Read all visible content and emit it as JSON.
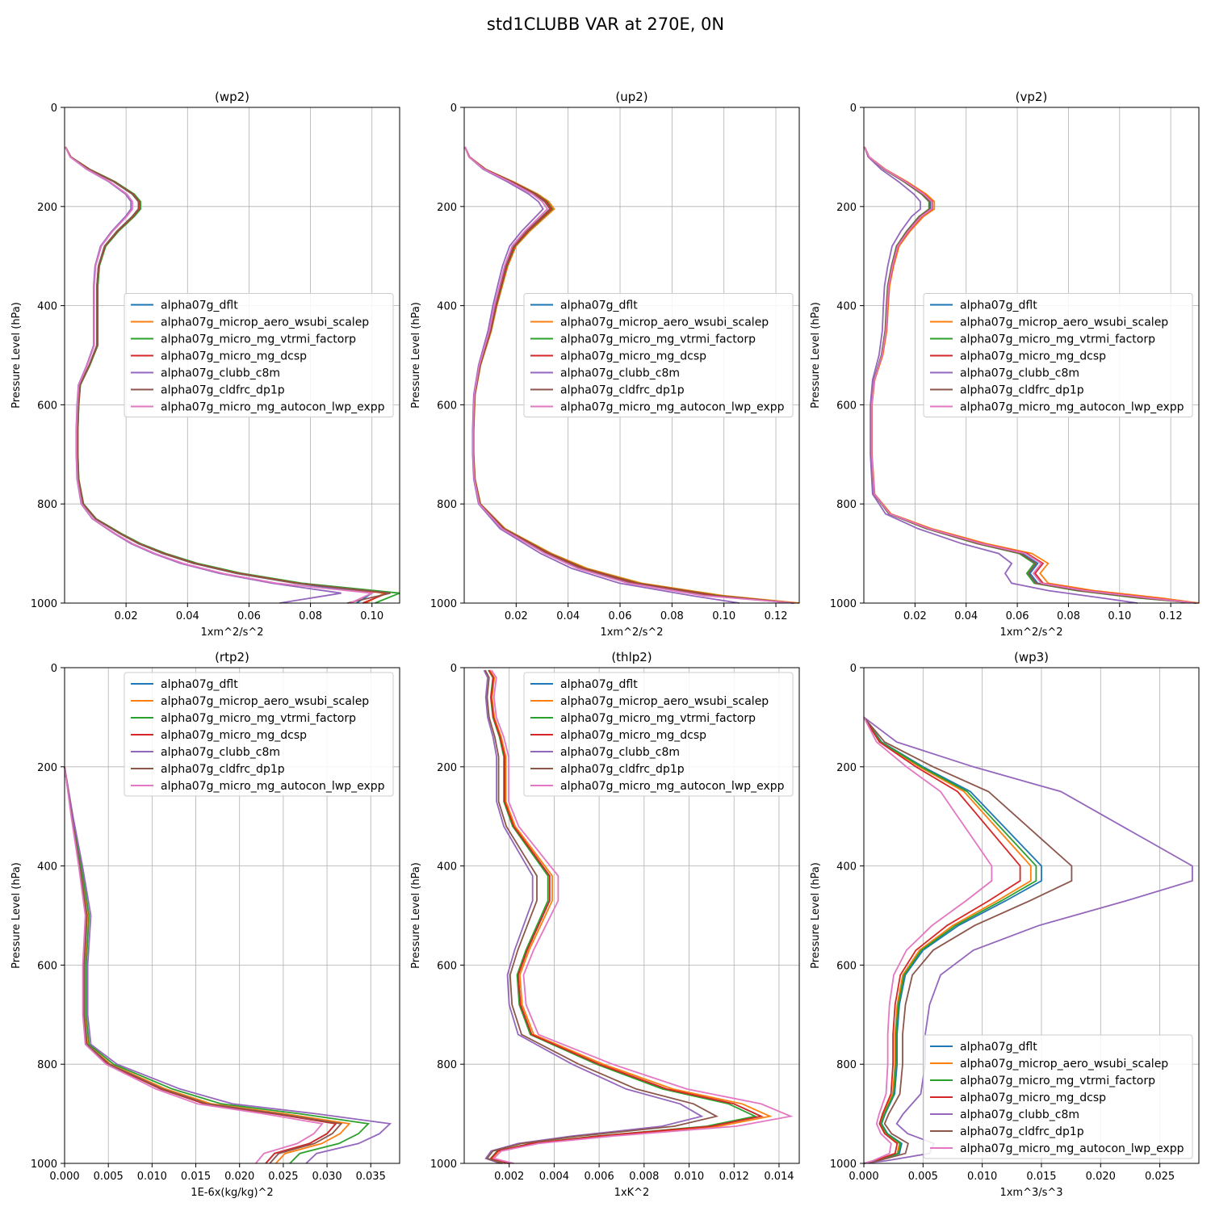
{
  "figure": {
    "title": "std1CLUBB VAR at 270E, 0N"
  },
  "legend_entries": [
    "alpha07g_dflt",
    "alpha07g_microp_aero_wsubi_scalep",
    "alpha07g_micro_mg_vtrmi_factorp",
    "alpha07g_micro_mg_dcsp",
    "alpha07g_clubb_c8m",
    "alpha07g_cldfrc_dp1p",
    "alpha07g_micro_mg_autocon_lwp_expp"
  ],
  "colors": [
    "#1f77b4",
    "#ff7f0e",
    "#2ca02c",
    "#d62728",
    "#9467bd",
    "#8c564b",
    "#e377c2"
  ],
  "chart_data": [
    {
      "type": "line",
      "title": "(wp2)",
      "xlabel": "1xm^2/s^2",
      "ylabel": "Pressure Level (hPa)",
      "xlim": [
        0.0,
        0.109
      ],
      "ylim": [
        1000,
        0
      ],
      "grid": true,
      "legend_loc": "center right",
      "xticks": [
        0.02,
        0.04,
        0.06,
        0.08,
        0.1
      ],
      "xticklabels": [
        "0.02",
        "0.04",
        "0.06",
        "0.08",
        "0.10"
      ],
      "yticks": [
        0,
        200,
        400,
        600,
        800,
        1000
      ],
      "yticklabels": [
        "0",
        "200",
        "400",
        "600",
        "800",
        "1000"
      ],
      "base": {
        "p": [
          80,
          100,
          125,
          150,
          175,
          190,
          205,
          220,
          250,
          280,
          320,
          360,
          400,
          450,
          480,
          520,
          560,
          600,
          650,
          700,
          750,
          800,
          830,
          860,
          880,
          900,
          920,
          940,
          960,
          980,
          1000
        ],
        "x": [
          0.0003,
          0.002,
          0.008,
          0.016,
          0.022,
          0.024,
          0.024,
          0.022,
          0.017,
          0.013,
          0.011,
          0.0105,
          0.0105,
          0.0105,
          0.0105,
          0.008,
          0.005,
          0.0045,
          0.0042,
          0.0042,
          0.0045,
          0.006,
          0.01,
          0.018,
          0.024,
          0.032,
          0.042,
          0.056,
          0.075,
          0.1,
          0.102
        ]
      },
      "series": [
        {
          "name": "alpha07g_dflt",
          "scale": 1.0,
          "tail": [
            0.1,
            0.095
          ]
        },
        {
          "name": "alpha07g_microp_aero_wsubi_scalep",
          "scale": 1.02,
          "tail": [
            0.104,
            0.098
          ]
        },
        {
          "name": "alpha07g_micro_mg_vtrmi_factorp",
          "scale": 1.03,
          "tail": [
            0.109,
            0.101
          ]
        },
        {
          "name": "alpha07g_micro_mg_dcsp",
          "scale": 1.01,
          "tail": [
            0.105,
            0.097
          ]
        },
        {
          "name": "alpha07g_clubb_c8m",
          "scale": 0.9,
          "tail": [
            0.09,
            0.07
          ]
        },
        {
          "name": "alpha07g_cldfrc_dp1p",
          "scale": 1.0,
          "tail": [
            0.106,
            0.092
          ]
        },
        {
          "name": "alpha07g_micro_mg_autocon_lwp_expp",
          "scale": 0.92,
          "tail": [
            0.1,
            0.093
          ]
        }
      ]
    },
    {
      "type": "line",
      "title": "(up2)",
      "xlabel": "1xm^2/s^2",
      "ylabel": "Pressure Level (hPa)",
      "xlim": [
        0.0,
        0.129
      ],
      "ylim": [
        1000,
        0
      ],
      "grid": true,
      "legend_loc": "center right",
      "xticks": [
        0.02,
        0.04,
        0.06,
        0.08,
        0.1,
        0.12
      ],
      "xticklabels": [
        "0.02",
        "0.04",
        "0.06",
        "0.08",
        "0.10",
        "0.12"
      ],
      "yticks": [
        0,
        200,
        400,
        600,
        800,
        1000
      ],
      "yticklabels": [
        "0",
        "200",
        "400",
        "600",
        "800",
        "1000"
      ],
      "base": {
        "p": [
          80,
          100,
          125,
          150,
          175,
          190,
          205,
          220,
          250,
          280,
          320,
          360,
          400,
          450,
          520,
          580,
          650,
          700,
          750,
          800,
          850,
          900,
          930,
          960,
          985,
          1000
        ],
        "x": [
          0.0003,
          0.002,
          0.008,
          0.018,
          0.027,
          0.031,
          0.033,
          0.03,
          0.024,
          0.019,
          0.016,
          0.014,
          0.012,
          0.01,
          0.006,
          0.004,
          0.0035,
          0.0035,
          0.004,
          0.006,
          0.015,
          0.032,
          0.045,
          0.065,
          0.095,
          0.127
        ]
      },
      "series": [
        {
          "name": "alpha07g_dflt",
          "scale": 1.0,
          "tail": [
            0.127
          ]
        },
        {
          "name": "alpha07g_microp_aero_wsubi_scalep",
          "scale": 1.05,
          "tail": [
            0.129
          ]
        },
        {
          "name": "alpha07g_micro_mg_vtrmi_factorp",
          "scale": 1.03,
          "tail": [
            0.127
          ]
        },
        {
          "name": "alpha07g_micro_mg_dcsp",
          "scale": 1.02,
          "tail": [
            0.127
          ]
        },
        {
          "name": "alpha07g_clubb_c8m",
          "scale": 0.92,
          "tail": [
            0.106
          ]
        },
        {
          "name": "alpha07g_cldfrc_dp1p",
          "scale": 1.0,
          "tail": [
            0.127
          ]
        },
        {
          "name": "alpha07g_micro_mg_autocon_lwp_expp",
          "scale": 0.97,
          "tail": [
            0.127
          ]
        }
      ]
    },
    {
      "type": "line",
      "title": "(vp2)",
      "xlabel": "1xm^2/s^2",
      "ylabel": "Pressure Level (hPa)",
      "xlim": [
        0.0,
        0.131
      ],
      "ylim": [
        1000,
        0
      ],
      "grid": true,
      "legend_loc": "center right",
      "xticks": [
        0.02,
        0.04,
        0.06,
        0.08,
        0.1,
        0.12
      ],
      "xticklabels": [
        "0.02",
        "0.04",
        "0.06",
        "0.08",
        "0.10",
        "0.12"
      ],
      "yticks": [
        0,
        200,
        400,
        600,
        800,
        1000
      ],
      "yticklabels": [
        "0",
        "200",
        "400",
        "600",
        "800",
        "1000"
      ],
      "base": {
        "p": [
          80,
          100,
          125,
          150,
          175,
          190,
          205,
          220,
          250,
          280,
          320,
          360,
          400,
          450,
          500,
          550,
          600,
          700,
          780,
          820,
          850,
          880,
          900,
          920,
          940,
          960,
          975,
          990,
          1000
        ],
        "x": [
          0.0003,
          0.002,
          0.008,
          0.016,
          0.023,
          0.026,
          0.026,
          0.022,
          0.017,
          0.013,
          0.011,
          0.0095,
          0.009,
          0.0085,
          0.007,
          0.004,
          0.003,
          0.003,
          0.004,
          0.01,
          0.025,
          0.045,
          0.062,
          0.068,
          0.065,
          0.068,
          0.085,
          0.11,
          0.13
        ]
      },
      "series": [
        {
          "name": "alpha07g_dflt",
          "scale": 1.0,
          "tail": [
            0.13
          ]
        },
        {
          "name": "alpha07g_microp_aero_wsubi_scalep",
          "scale": 1.06,
          "tail": [
            0.131
          ]
        },
        {
          "name": "alpha07g_micro_mg_vtrmi_factorp",
          "scale": 0.98,
          "tail": [
            0.13
          ]
        },
        {
          "name": "alpha07g_micro_mg_dcsp",
          "scale": 1.03,
          "tail": [
            0.13
          ]
        },
        {
          "name": "alpha07g_clubb_c8m",
          "scale": 0.85,
          "tail": [
            0.107
          ]
        },
        {
          "name": "alpha07g_cldfrc_dp1p",
          "scale": 0.99,
          "tail": [
            0.13
          ]
        },
        {
          "name": "alpha07g_micro_mg_autocon_lwp_expp",
          "scale": 1.02,
          "tail": [
            0.13
          ]
        }
      ]
    },
    {
      "type": "line",
      "title": "(rtp2)",
      "xlabel": "1E-6x(kg/kg)^2",
      "ylabel": "Pressure Level (hPa)",
      "xlim": [
        0.0,
        0.0383
      ],
      "ylim": [
        1000,
        0
      ],
      "grid": true,
      "legend_loc": "upper right",
      "xticks": [
        0.0,
        0.005,
        0.01,
        0.015,
        0.02,
        0.025,
        0.03,
        0.035
      ],
      "xticklabels": [
        "0.000",
        "0.005",
        "0.010",
        "0.015",
        "0.020",
        "0.025",
        "0.030",
        "0.035"
      ],
      "yticks": [
        0,
        200,
        400,
        600,
        800,
        1000
      ],
      "yticklabels": [
        "0",
        "200",
        "400",
        "600",
        "800",
        "1000"
      ],
      "base": {
        "p": [
          200,
          300,
          400,
          500,
          600,
          700,
          760,
          800,
          850,
          880,
          900,
          920,
          940,
          960,
          980,
          1000
        ],
        "x": [
          0.0,
          0.0008,
          0.0017,
          0.0025,
          0.0022,
          0.0022,
          0.0025,
          0.005,
          0.011,
          0.016,
          0.024,
          0.031,
          0.03,
          0.028,
          0.024,
          0.023
        ]
      },
      "series": [
        {
          "name": "alpha07g_dflt",
          "scale": 1.0,
          "tail": []
        },
        {
          "name": "alpha07g_microp_aero_wsubi_scalep",
          "scale": 1.05,
          "tail": []
        },
        {
          "name": "alpha07g_micro_mg_vtrmi_factorp",
          "scale": 1.12,
          "tail": []
        },
        {
          "name": "alpha07g_micro_mg_dcsp",
          "scale": 1.0,
          "tail": []
        },
        {
          "name": "alpha07g_clubb_c8m",
          "scale": 1.2,
          "tail": []
        },
        {
          "name": "alpha07g_cldfrc_dp1p",
          "scale": 1.02,
          "tail": []
        },
        {
          "name": "alpha07g_micro_mg_autocon_lwp_expp",
          "scale": 0.95,
          "tail": []
        }
      ]
    },
    {
      "type": "line",
      "title": "(thlp2)",
      "xlabel": "1xK^2",
      "ylabel": "Pressure Level (hPa)",
      "xlim": [
        0.0,
        0.0149
      ],
      "ylim": [
        1000,
        0
      ],
      "grid": true,
      "legend_loc": "upper right",
      "xticks": [
        0.002,
        0.004,
        0.006,
        0.008,
        0.01,
        0.012,
        0.014
      ],
      "xticklabels": [
        "0.002",
        "0.004",
        "0.006",
        "0.008",
        "0.010",
        "0.012",
        "0.014"
      ],
      "yticks": [
        0,
        200,
        400,
        600,
        800,
        1000
      ],
      "yticklabels": [
        "0",
        "200",
        "400",
        "600",
        "800",
        "1000"
      ],
      "base": {
        "p": [
          5,
          20,
          60,
          100,
          140,
          180,
          220,
          270,
          320,
          370,
          420,
          470,
          520,
          570,
          620,
          680,
          740,
          800,
          850,
          880,
          905,
          925,
          945,
          960,
          975,
          990,
          1000
        ],
        "x": [
          0.0011,
          0.0013,
          0.0012,
          0.0013,
          0.0016,
          0.0018,
          0.0018,
          0.0018,
          0.0022,
          0.003,
          0.0038,
          0.0038,
          0.0033,
          0.0028,
          0.0024,
          0.0025,
          0.003,
          0.006,
          0.009,
          0.012,
          0.0132,
          0.011,
          0.006,
          0.003,
          0.0015,
          0.0012,
          0.002
        ]
      },
      "series": [
        {
          "name": "alpha07g_dflt",
          "scale": 1.0,
          "tail": []
        },
        {
          "name": "alpha07g_microp_aero_wsubi_scalep",
          "scale": 1.03,
          "tail": []
        },
        {
          "name": "alpha07g_micro_mg_vtrmi_factorp",
          "scale": 0.98,
          "tail": []
        },
        {
          "name": "alpha07g_micro_mg_dcsp",
          "scale": 1.0,
          "tail": []
        },
        {
          "name": "alpha07g_clubb_c8m",
          "scale": 0.8,
          "tail": []
        },
        {
          "name": "alpha07g_cldfrc_dp1p",
          "scale": 0.85,
          "tail": []
        },
        {
          "name": "alpha07g_micro_mg_autocon_lwp_expp",
          "scale": 1.1,
          "tail": []
        }
      ]
    },
    {
      "type": "line",
      "title": "(wp3)",
      "xlabel": "1xm^3/s^3",
      "ylabel": "Pressure Level (hPa)",
      "xlim": [
        0.0,
        0.0283
      ],
      "ylim": [
        1000,
        0
      ],
      "grid": true,
      "legend_loc": "lower right",
      "xticks": [
        0.0,
        0.005,
        0.01,
        0.015,
        0.02,
        0.025
      ],
      "xticklabels": [
        "0.000",
        "0.005",
        "0.010",
        "0.015",
        "0.020",
        "0.025"
      ],
      "yticks": [
        0,
        200,
        400,
        600,
        800,
        1000
      ],
      "yticklabels": [
        "0",
        "200",
        "400",
        "600",
        "800",
        "1000"
      ],
      "base": {
        "p": [
          100,
          150,
          200,
          250,
          300,
          350,
          400,
          430,
          470,
          520,
          570,
          620,
          680,
          740,
          800,
          860,
          900,
          920,
          940,
          960,
          980,
          995,
          1000
        ],
        "x": [
          0.0,
          0.0015,
          0.005,
          0.009,
          0.011,
          0.013,
          0.015,
          0.015,
          0.012,
          0.008,
          0.005,
          0.0035,
          0.003,
          0.0028,
          0.0028,
          0.0026,
          0.0018,
          0.0015,
          0.002,
          0.0032,
          0.003,
          0.001,
          0.0
        ]
      },
      "series": [
        {
          "name": "alpha07g_dflt",
          "scale": 1.0,
          "tail": []
        },
        {
          "name": "alpha07g_microp_aero_wsubi_scalep",
          "scale": 0.94,
          "tail": []
        },
        {
          "name": "alpha07g_micro_mg_vtrmi_factorp",
          "scale": 0.97,
          "tail": []
        },
        {
          "name": "alpha07g_micro_mg_dcsp",
          "scale": 0.88,
          "tail": []
        },
        {
          "name": "alpha07g_clubb_c8m",
          "scale": 1.85,
          "tail": []
        },
        {
          "name": "alpha07g_cldfrc_dp1p",
          "scale": 1.17,
          "tail": []
        },
        {
          "name": "alpha07g_micro_mg_autocon_lwp_expp",
          "scale": 0.72,
          "tail": []
        }
      ]
    }
  ]
}
